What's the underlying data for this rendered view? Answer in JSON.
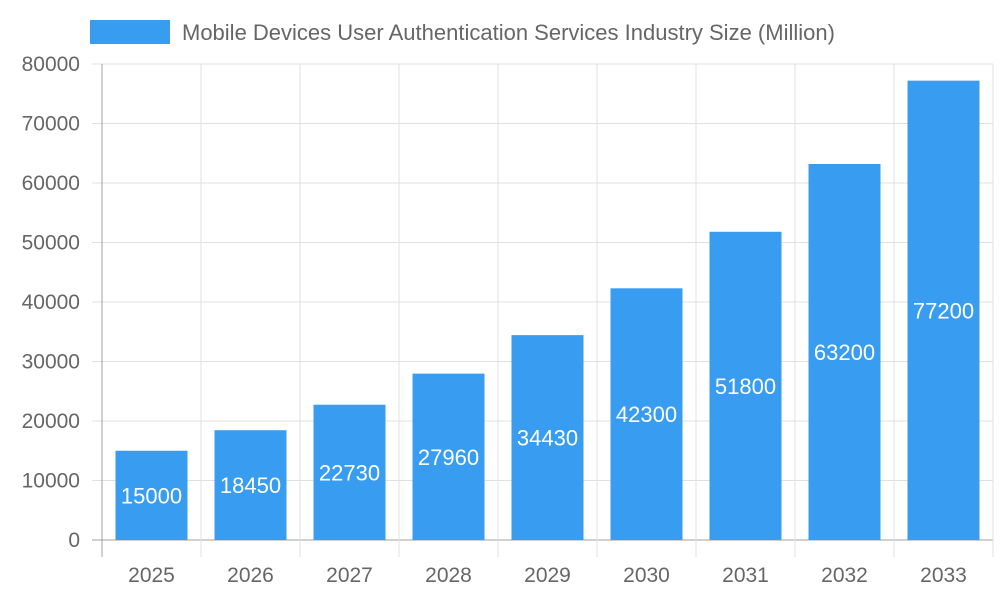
{
  "chart_data": {
    "type": "bar",
    "categories": [
      "2025",
      "2026",
      "2027",
      "2028",
      "2029",
      "2030",
      "2031",
      "2032",
      "2033"
    ],
    "series": [
      {
        "name": "Mobile Devices User Authentication Services Industry Size (Million)",
        "values": [
          15000,
          18450,
          22730,
          27960,
          34430,
          42300,
          51800,
          63200,
          77200
        ]
      }
    ],
    "ylim": [
      0,
      80000
    ],
    "yticks": [
      0,
      10000,
      20000,
      30000,
      40000,
      50000,
      60000,
      70000,
      80000
    ],
    "grid": true,
    "legend": "top",
    "data_labels": true,
    "colors": {
      "bar": "#389cf0",
      "grid": "#e0e0e0",
      "axis": "#a0a0a0",
      "text": "#666666",
      "label": "#ffffff"
    }
  }
}
